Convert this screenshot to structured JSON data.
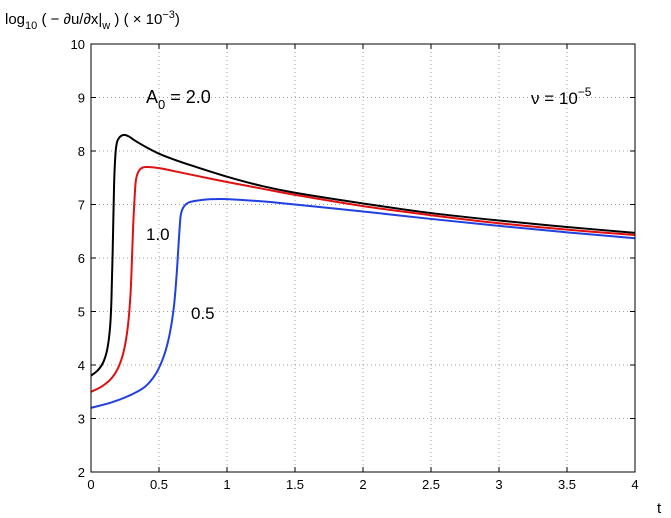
{
  "chart_data": {
    "type": "line",
    "ylabel": {
      "prefix": "log",
      "prefix_sub": "10",
      "mid": " ( − ∂u/∂x|",
      "mid_sub": "w",
      "suffix": " ) ( × 10",
      "suffix_sup": "−3",
      "end": ")"
    },
    "xlabel": "t",
    "xlim": [
      0,
      4
    ],
    "ylim": [
      2,
      10
    ],
    "x_ticks": [
      "0",
      "0.5",
      "1",
      "1.5",
      "2",
      "2.5",
      "3",
      "3.5",
      "4"
    ],
    "y_ticks": [
      "2",
      "3",
      "4",
      "5",
      "6",
      "7",
      "8",
      "9",
      "10"
    ],
    "grid": true,
    "annotations": {
      "a0_main": "A",
      "a0_sub": "0",
      "a0_value": " = 2.0",
      "nu_main": "ν = 10",
      "nu_sup": "−5",
      "label_1_0": "1.0",
      "label_0_5": "0.5"
    },
    "series": [
      {
        "color": "#000000",
        "x": [
          0,
          0.05,
          0.09,
          0.12,
          0.14,
          0.15,
          0.16,
          0.17,
          0.18,
          0.19,
          0.2,
          0.22,
          0.25,
          0.28,
          0.32,
          0.4,
          0.5,
          0.6,
          0.75,
          1.0,
          1.25,
          1.5,
          2.0,
          2.5,
          3.0,
          3.5,
          4.0
        ],
        "y": [
          3.8,
          3.9,
          4.05,
          4.3,
          4.7,
          5.2,
          6.2,
          7.4,
          7.95,
          8.15,
          8.22,
          8.28,
          8.3,
          8.27,
          8.2,
          8.08,
          7.95,
          7.85,
          7.72,
          7.52,
          7.35,
          7.22,
          7.02,
          6.84,
          6.7,
          6.58,
          6.47
        ]
      },
      {
        "color": "#e01010",
        "x": [
          0,
          0.08,
          0.15,
          0.2,
          0.24,
          0.27,
          0.29,
          0.3,
          0.31,
          0.32,
          0.33,
          0.35,
          0.38,
          0.42,
          0.5,
          0.6,
          0.75,
          1.0,
          1.25,
          1.5,
          2.0,
          2.5,
          3.0,
          3.5,
          4.0
        ],
        "y": [
          3.5,
          3.6,
          3.75,
          3.95,
          4.25,
          4.7,
          5.3,
          5.9,
          6.6,
          7.1,
          7.45,
          7.62,
          7.69,
          7.7,
          7.68,
          7.63,
          7.55,
          7.42,
          7.3,
          7.18,
          6.97,
          6.8,
          6.65,
          6.53,
          6.43
        ]
      },
      {
        "color": "#2040e0",
        "x": [
          0,
          0.15,
          0.3,
          0.4,
          0.48,
          0.54,
          0.58,
          0.61,
          0.63,
          0.64,
          0.65,
          0.66,
          0.68,
          0.72,
          0.8,
          0.9,
          1.0,
          1.25,
          1.5,
          2.0,
          2.5,
          3.0,
          3.5,
          4.0
        ],
        "y": [
          3.2,
          3.3,
          3.45,
          3.6,
          3.85,
          4.2,
          4.6,
          5.1,
          5.7,
          6.1,
          6.5,
          6.8,
          6.95,
          7.04,
          7.08,
          7.1,
          7.1,
          7.06,
          7.0,
          6.87,
          6.73,
          6.6,
          6.48,
          6.37
        ]
      }
    ]
  }
}
